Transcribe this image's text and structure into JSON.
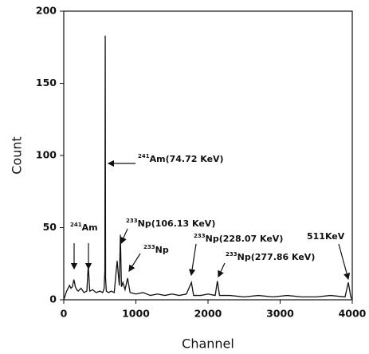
{
  "chart_data": {
    "type": "line",
    "x_label": "Channel",
    "y_label": "Count",
    "color": "#111111",
    "x": [
      0,
      40,
      80,
      100,
      120,
      140,
      150,
      160,
      180,
      200,
      240,
      280,
      320,
      340,
      360,
      400,
      450,
      500,
      540,
      560,
      570,
      575,
      580,
      590,
      620,
      660,
      700,
      740,
      770,
      785,
      800,
      820,
      850,
      885,
      920,
      1000,
      1100,
      1200,
      1300,
      1400,
      1500,
      1600,
      1700,
      1770,
      1800,
      1900,
      2000,
      2100,
      2130,
      2160,
      2300,
      2500,
      2700,
      2900,
      3100,
      3300,
      3500,
      3700,
      3900,
      3945,
      3980,
      4000
    ],
    "values": [
      0,
      6,
      10,
      8,
      9,
      14,
      12,
      9,
      7,
      6,
      8,
      5,
      6,
      24,
      6,
      7,
      5,
      6,
      5,
      8,
      20,
      183,
      15,
      6,
      5,
      6,
      5,
      27,
      10,
      45,
      9,
      12,
      7,
      15,
      5,
      4,
      5,
      3,
      4,
      3,
      4,
      3,
      4,
      12,
      3,
      3,
      4,
      3,
      13,
      3,
      3,
      2,
      3,
      2,
      3,
      2,
      2,
      3,
      2,
      12,
      2,
      0
    ],
    "xlim": [
      0,
      4000
    ],
    "xticks": [
      0,
      1000,
      2000,
      3000,
      4000
    ],
    "ylim": [
      0,
      200
    ],
    "yticks": [
      0,
      50,
      100,
      150,
      200
    ],
    "annotations": [
      {
        "sup": "241",
        "text": "Am"
      },
      {
        "sup": "241",
        "text": "Am(74.72 KeV)"
      },
      {
        "sup": "233",
        "text": "Np(106.13 KeV)"
      },
      {
        "sup": "233",
        "text": "Np"
      },
      {
        "sup": "233",
        "text": "Np(228.07 KeV)"
      },
      {
        "sup": "233",
        "text": "Np(277.86 KeV)"
      },
      {
        "text": "511KeV"
      }
    ]
  }
}
